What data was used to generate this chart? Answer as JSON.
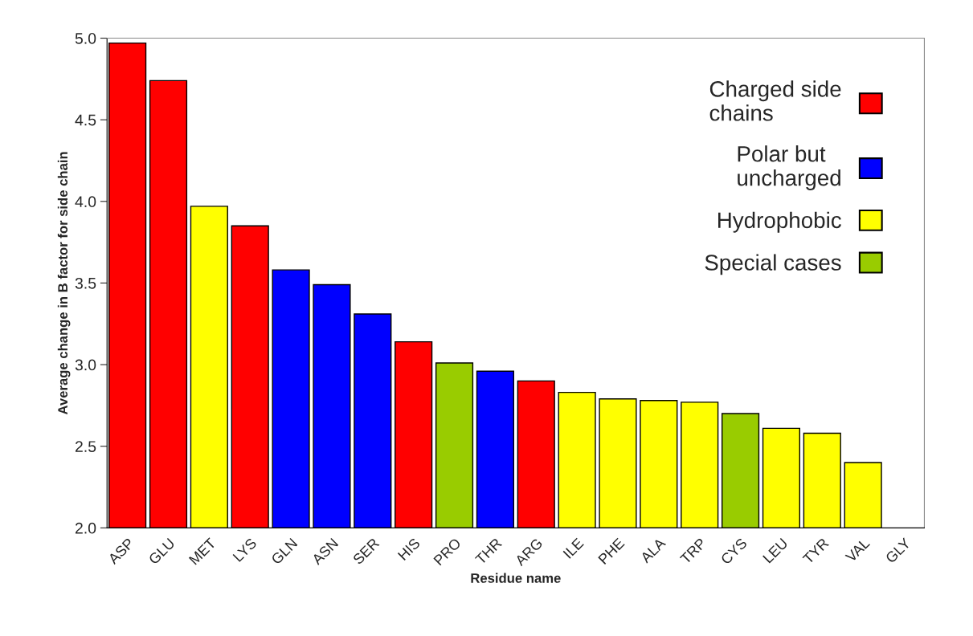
{
  "chart_data": {
    "type": "bar",
    "xlabel": "Residue name",
    "ylabel": "Average change in B factor for side chain",
    "categories": [
      "ASP",
      "GLU",
      "MET",
      "LYS",
      "GLN",
      "ASN",
      "SER",
      "HIS",
      "PRO",
      "THR",
      "ARG",
      "ILE",
      "PHE",
      "ALA",
      "TRP",
      "CYS",
      "LEU",
      "TYR",
      "VAL",
      "GLY"
    ],
    "series": [
      {
        "name": "Charged side\nchains",
        "color": "#ff0000",
        "values": [
          4.97,
          4.74,
          null,
          3.85,
          null,
          null,
          null,
          3.14,
          null,
          null,
          2.9,
          null,
          null,
          null,
          null,
          null,
          null,
          null,
          null,
          null
        ]
      },
      {
        "name": "Polar but\nuncharged",
        "color": "#0000ff",
        "values": [
          null,
          null,
          null,
          null,
          3.58,
          3.49,
          3.31,
          null,
          null,
          2.96,
          null,
          null,
          null,
          null,
          null,
          null,
          null,
          null,
          null,
          null
        ]
      },
      {
        "name": "Hydrophobic",
        "color": "#ffff00",
        "values": [
          null,
          null,
          3.97,
          null,
          null,
          null,
          null,
          null,
          null,
          null,
          null,
          2.83,
          2.79,
          2.78,
          2.77,
          null,
          2.61,
          2.58,
          2.4,
          null
        ]
      },
      {
        "name": "Special cases",
        "color": "#99cc00",
        "values": [
          null,
          null,
          null,
          null,
          null,
          null,
          null,
          null,
          3.01,
          null,
          null,
          null,
          null,
          null,
          null,
          2.7,
          null,
          null,
          null,
          null
        ]
      }
    ],
    "ylim": [
      2.0,
      5.0
    ],
    "yticks": [
      {
        "value": 2.0,
        "label": "2.0"
      },
      {
        "value": 2.5,
        "label": "2.5"
      },
      {
        "value": 3.0,
        "label": "3.0"
      },
      {
        "value": 3.5,
        "label": "3.5"
      },
      {
        "value": 4.0,
        "label": "4.0"
      },
      {
        "value": 4.5,
        "label": "4.5"
      },
      {
        "value": 5.0,
        "label": "5.0"
      }
    ],
    "grid": false,
    "legend": "top right"
  }
}
